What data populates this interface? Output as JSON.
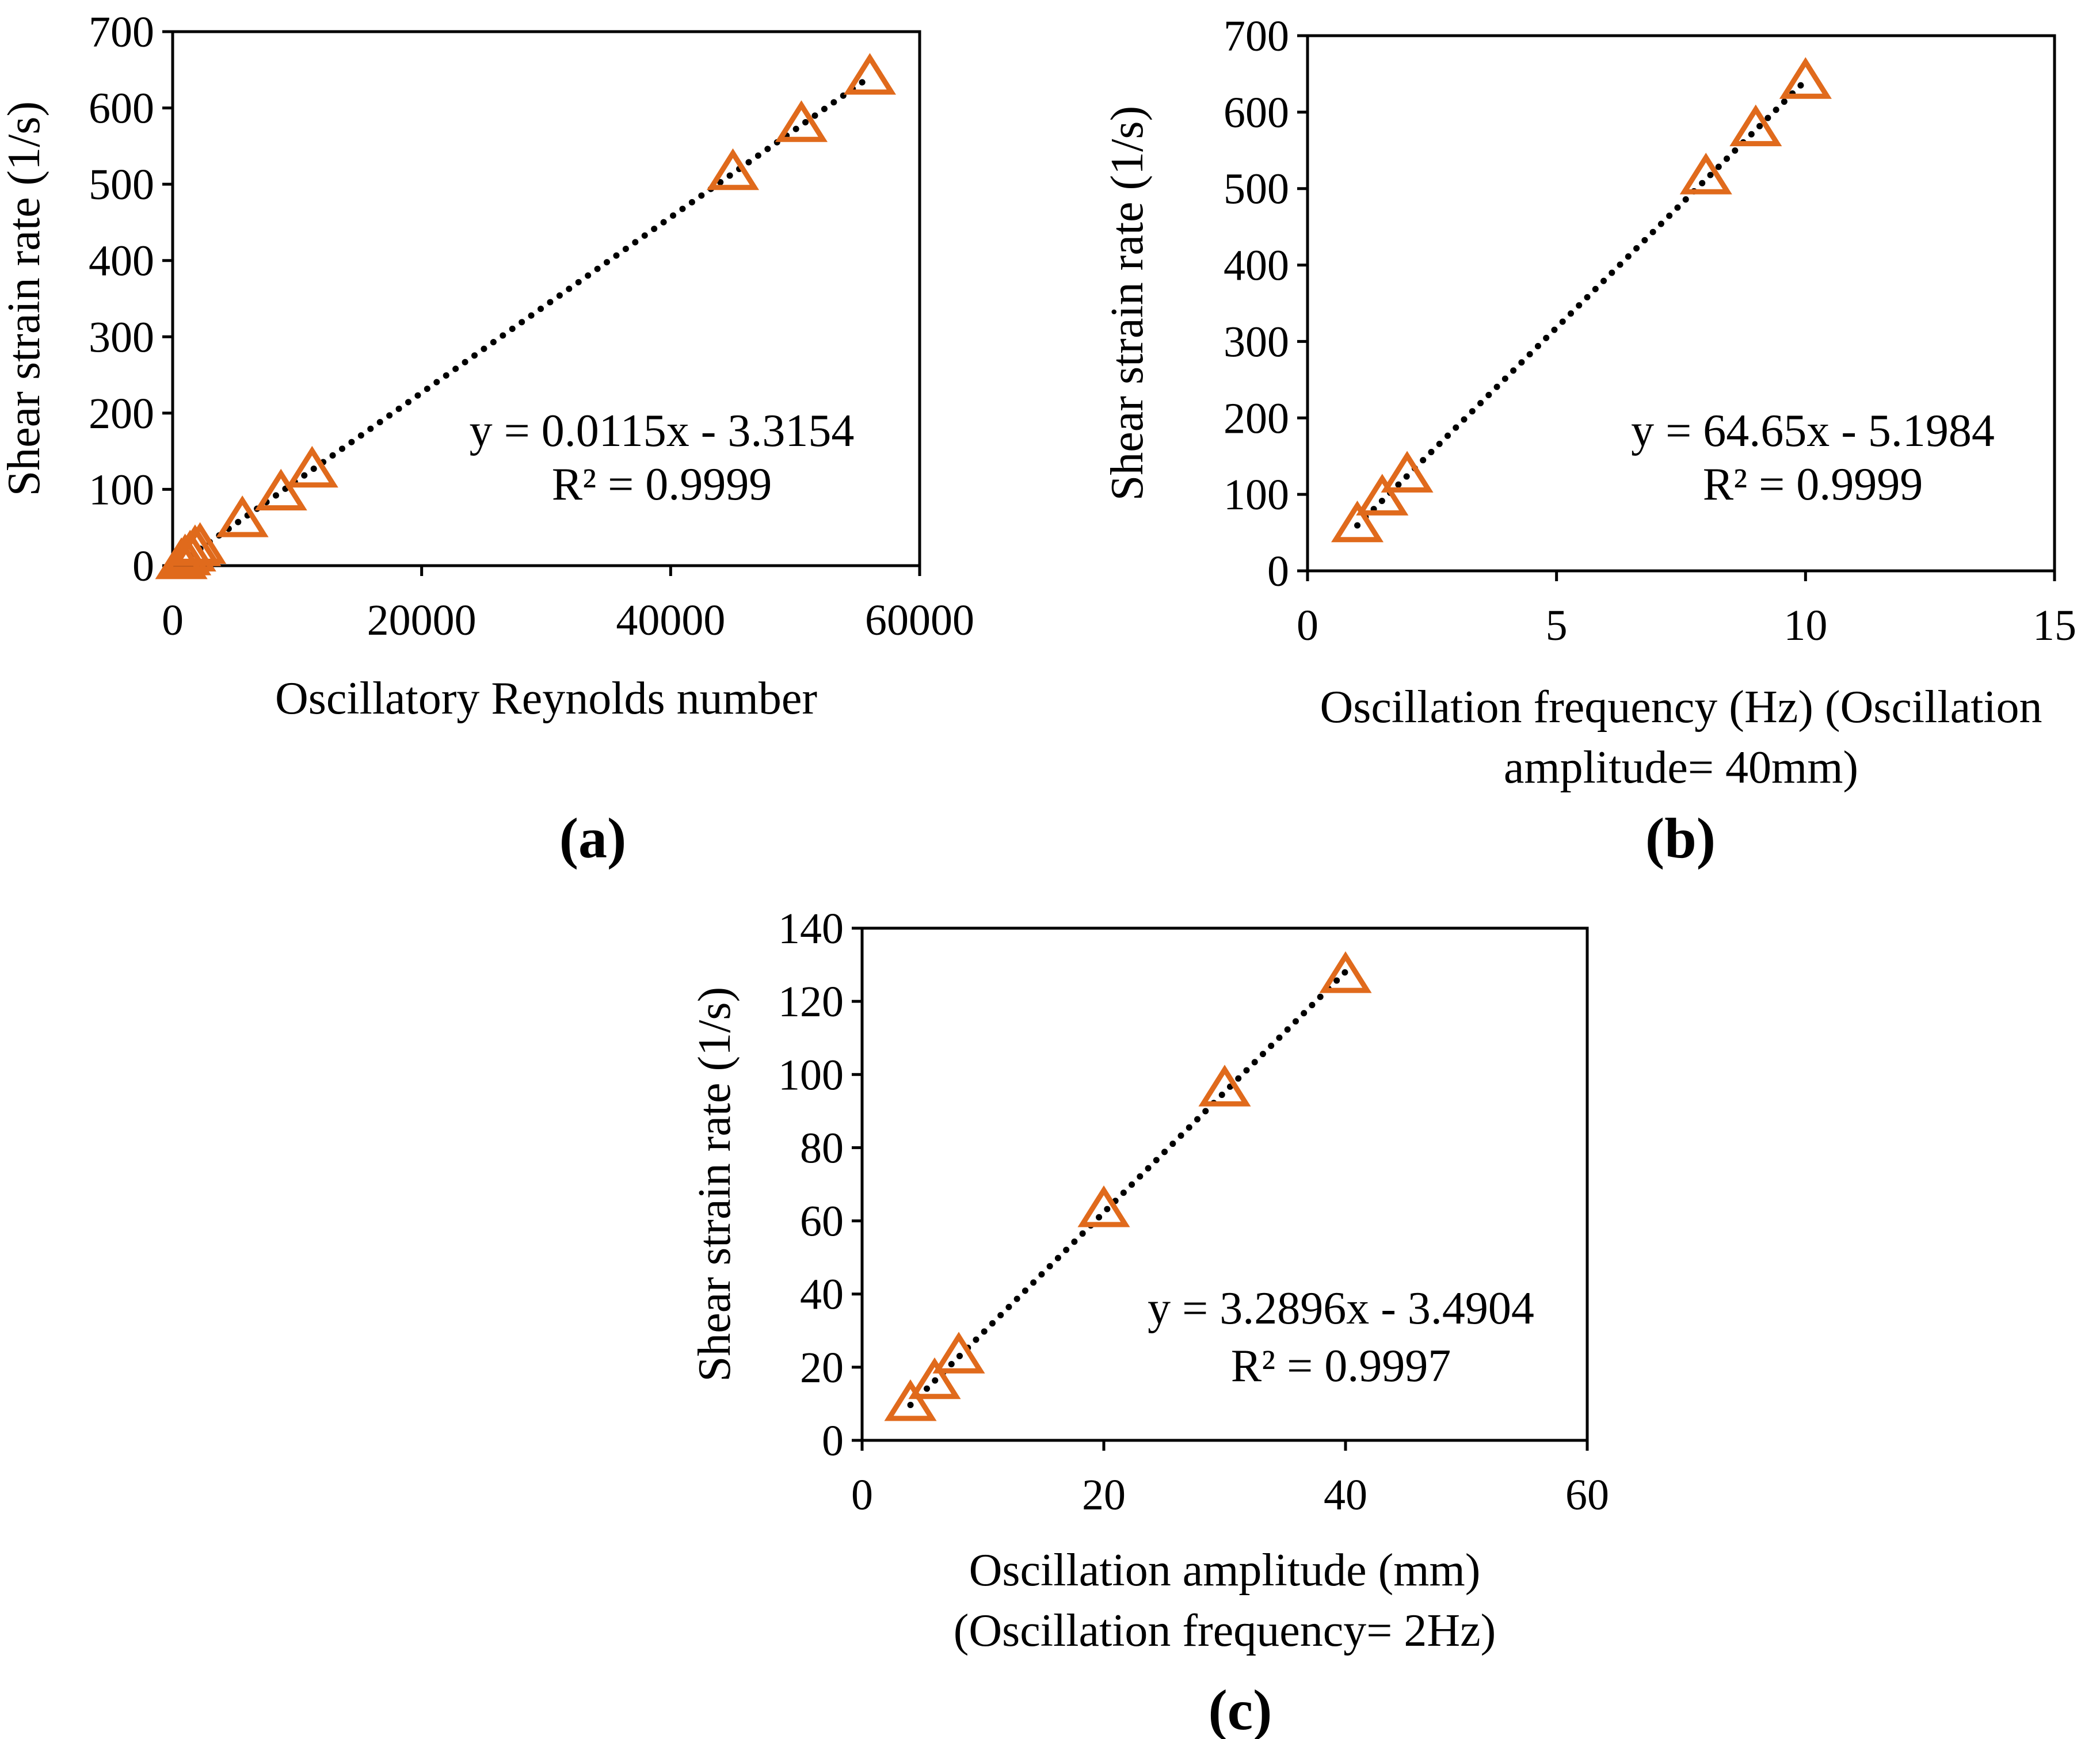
{
  "chart_data": [
    {
      "type": "scatter",
      "panel_label": "(a)",
      "title": "",
      "xlabel": [
        "Oscillatory Reynolds number"
      ],
      "ylabel": "Shear strain rate (1/s)",
      "xlim": [
        0,
        60000
      ],
      "ylim": [
        0,
        700
      ],
      "xticks": [
        0,
        20000,
        40000,
        60000
      ],
      "yticks": [
        0,
        100,
        200,
        300,
        400,
        500,
        600,
        700
      ],
      "x": [
        700,
        1000,
        1400,
        1800,
        2200,
        5600,
        8700,
        11200,
        45000,
        50500,
        56000
      ],
      "y": [
        5,
        10,
        15,
        22,
        25,
        60,
        95,
        125,
        515,
        578,
        640
      ],
      "series_name": "Shear strain rate",
      "marker": "open triangle",
      "trendline": {
        "type": "linear",
        "slope": 0.0115,
        "intercept": -3.3154
      },
      "equation": "y = 0.0115x - 3.3154",
      "r_squared": "R² = 0.9999"
    },
    {
      "type": "scatter",
      "panel_label": "(b)",
      "title": "",
      "xlabel": [
        "Oscillation frequency (Hz) (Oscillation",
        "amplitude= 40mm)"
      ],
      "ylabel": "Shear strain rate (1/s)",
      "xlim": [
        0,
        15
      ],
      "ylim": [
        0,
        700
      ],
      "xticks": [
        0,
        5,
        10,
        15
      ],
      "yticks": [
        100,
        200,
        300,
        400,
        500,
        600,
        700
      ],
      "ytick_labels": [
        "0",
        "100",
        "200",
        "300",
        "400",
        "500",
        "600",
        "700"
      ],
      "ytick_values": [
        0,
        100,
        200,
        300,
        400,
        500,
        600,
        700
      ],
      "x": [
        1,
        1.5,
        2,
        8,
        9,
        10
      ],
      "y": [
        60,
        95,
        125,
        515,
        578,
        640
      ],
      "series_name": "Shear strain rate",
      "marker": "open triangle",
      "trendline": {
        "type": "linear",
        "slope": 64.65,
        "intercept": -5.1984
      },
      "equation": "y = 64.65x - 5.1984",
      "r_squared": "R² = 0.9999"
    },
    {
      "type": "scatter",
      "panel_label": "(c)",
      "title": "",
      "xlabel": [
        "Oscillation amplitude (mm)",
        "(Oscillation frequency= 2Hz)"
      ],
      "ylabel": "Shear strain rate (1/s)",
      "xlim": [
        0,
        60
      ],
      "ylim": [
        0,
        140
      ],
      "xticks": [
        0,
        20,
        40,
        60
      ],
      "yticks": [
        0,
        20,
        40,
        60,
        80,
        100,
        120,
        140
      ],
      "x": [
        4,
        6,
        8,
        20,
        30,
        40
      ],
      "y": [
        10,
        16,
        23,
        63,
        96,
        127
      ],
      "series_name": "Shear strain rate",
      "marker": "open triangle",
      "trendline": {
        "type": "linear",
        "slope": 3.2896,
        "intercept": -3.4904
      },
      "equation": "y = 3.2896x - 3.4904",
      "r_squared": "R² = 0.9997"
    }
  ],
  "colors": {
    "marker": "#e06a1c",
    "trend": "#000000",
    "axis": "#000000"
  }
}
